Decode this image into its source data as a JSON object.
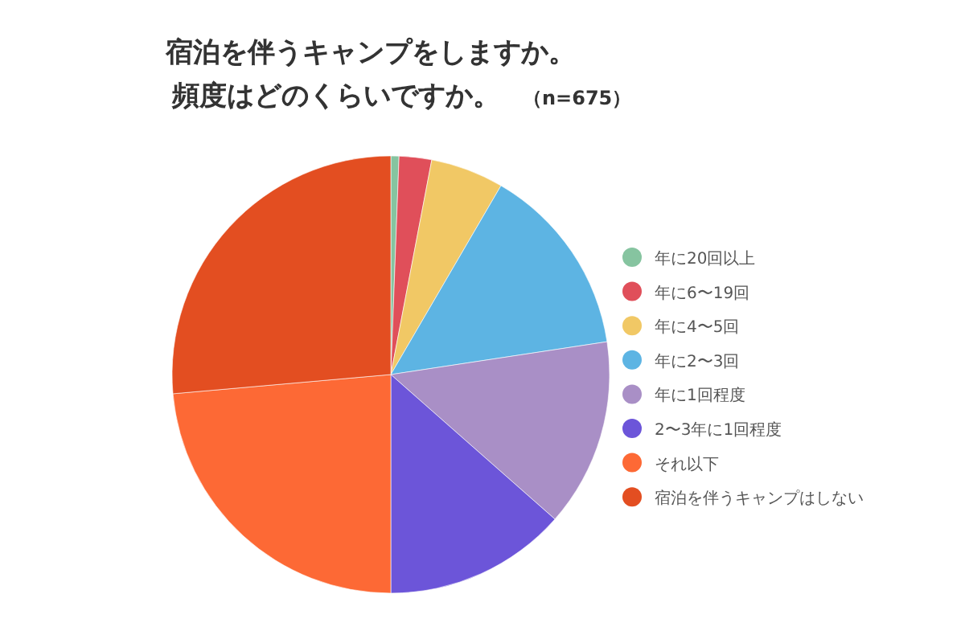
{
  "chart_data": {
    "type": "pie",
    "title": "宿泊を伴うキャンプをしますか。",
    "subtitle": "頻度はどのくらいですか。",
    "annotations": [
      "（n=675）"
    ],
    "categories": [
      "年に20回以上",
      "年に6〜19回",
      "年に4〜5回",
      "年に2〜3回",
      "年に1回程度",
      "2〜3年に1回程度",
      "それ以下",
      "宿泊を伴うキャンプはしない"
    ],
    "values": [
      0.6,
      2.4,
      5.4,
      14.2,
      13.9,
      13.5,
      23.6,
      26.4
    ],
    "colors": [
      "#86c4a0",
      "#e04f5a",
      "#f1c865",
      "#5db4e3",
      "#a98fc6",
      "#6c55d9",
      "#fd6935",
      "#e34e21"
    ],
    "legend": "right"
  }
}
